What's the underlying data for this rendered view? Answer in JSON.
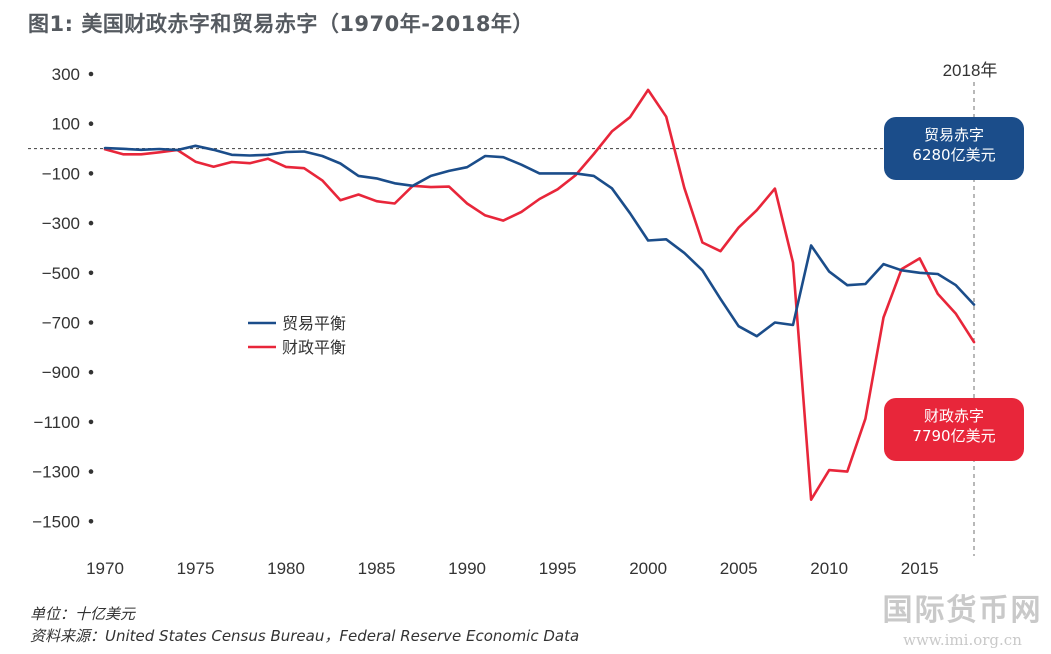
{
  "title": "图1: 美国财政赤字和贸易赤字（1970年-2018年）",
  "footer": {
    "unit": "单位：十亿美元",
    "source": "资料来源：United States Census Bureau，Federal Reserve Economic Data"
  },
  "watermark": {
    "text_cn": "国际货币网",
    "url": "www.imi.org.cn"
  },
  "callouts": {
    "trade": {
      "line1": "贸易赤字",
      "line2": "6280亿美元"
    },
    "fiscal": {
      "line1": "财政赤字",
      "line2": "7790亿美元"
    }
  },
  "colors": {
    "trade": "#1b4d8a",
    "fiscal": "#e8263a",
    "zero_line": "#555555",
    "marker_line": "#888888"
  },
  "chart_data": {
    "type": "line",
    "title": "图1: 美国财政赤字和贸易赤字（1970年-2018年）",
    "xlabel": "",
    "ylabel": "",
    "xlim": [
      1970,
      2018
    ],
    "ylim": [
      -1600,
      350
    ],
    "x_ticks": [
      1970,
      1975,
      1980,
      1985,
      1990,
      1995,
      2000,
      2005,
      2010,
      2015
    ],
    "y_ticks": [
      300,
      100,
      -100,
      -300,
      -500,
      -700,
      -900,
      -1100,
      -1300,
      -1500
    ],
    "reference_line": {
      "y": 0,
      "style": "dashed"
    },
    "marker": {
      "x": 2018,
      "label": "2018年",
      "style": "dashed"
    },
    "legend": {
      "position": "center-left",
      "entries": [
        "贸易平衡",
        "财政平衡"
      ]
    },
    "x": [
      1970,
      1971,
      1972,
      1973,
      1974,
      1975,
      1976,
      1977,
      1978,
      1979,
      1980,
      1981,
      1982,
      1983,
      1984,
      1985,
      1986,
      1987,
      1988,
      1989,
      1990,
      1991,
      1992,
      1993,
      1994,
      1995,
      1996,
      1997,
      1998,
      1999,
      2000,
      2001,
      2002,
      2003,
      2004,
      2005,
      2006,
      2007,
      2008,
      2009,
      2010,
      2011,
      2012,
      2013,
      2014,
      2015,
      2016,
      2017,
      2018
    ],
    "series": [
      {
        "name": "贸易平衡",
        "color": "#1b4d8a",
        "values": [
          2,
          -1,
          -5,
          -2,
          -6,
          11,
          -5,
          -25,
          -28,
          -25,
          -14,
          -12,
          -30,
          -60,
          -110,
          -120,
          -140,
          -150,
          -110,
          -90,
          -75,
          -30,
          -35,
          -65,
          -100,
          -100,
          -100,
          -110,
          -160,
          -260,
          -370,
          -365,
          -420,
          -490,
          -605,
          -715,
          -755,
          -700,
          -710,
          -390,
          -495,
          -550,
          -545,
          -465,
          -490,
          -500,
          -505,
          -550,
          -628
        ]
      },
      {
        "name": "财政平衡",
        "color": "#e8263a",
        "values": [
          -3,
          -23,
          -23,
          -15,
          -6,
          -53,
          -73,
          -54,
          -59,
          -41,
          -74,
          -79,
          -128,
          -208,
          -185,
          -212,
          -221,
          -150,
          -155,
          -153,
          -221,
          -269,
          -290,
          -255,
          -203,
          -164,
          -107,
          -22,
          69,
          126,
          236,
          128,
          -158,
          -378,
          -413,
          -318,
          -248,
          -161,
          -459,
          -1413,
          -1294,
          -1300,
          -1087,
          -680,
          -485,
          -442,
          -585,
          -665,
          -779
        ]
      }
    ]
  }
}
